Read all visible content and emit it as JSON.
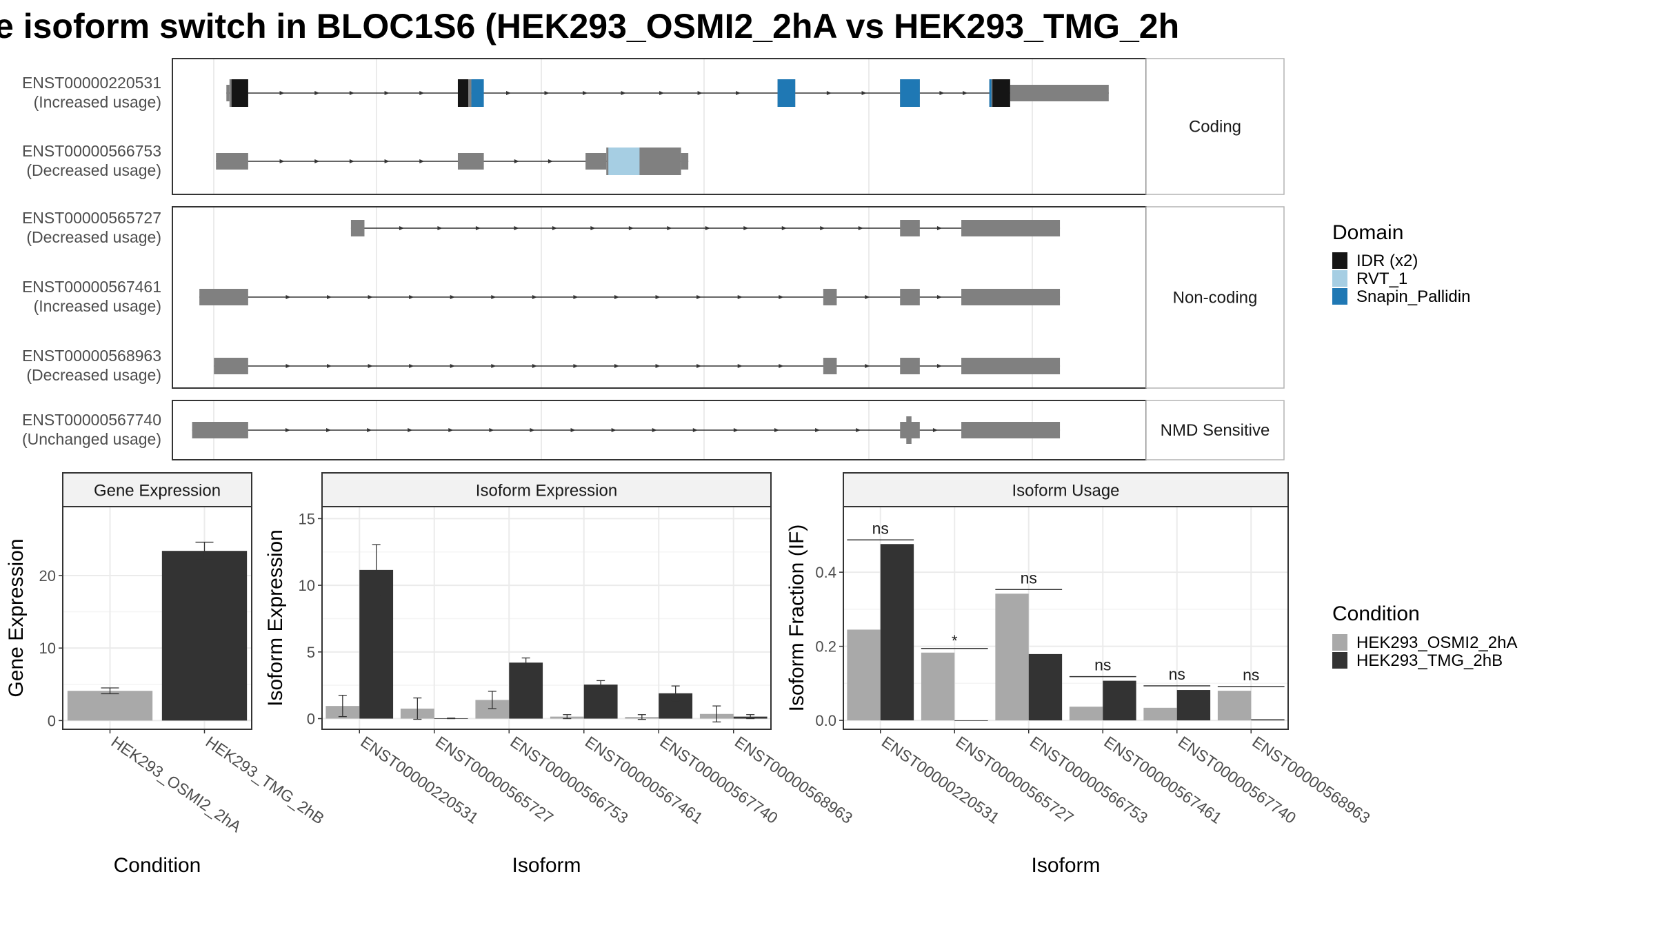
{
  "title": "e isoform switch in BLOC1S6 (HEK293_OSMI2_2hA vs HEK293_TMG_2h",
  "structure": {
    "groups": [
      {
        "label": "Coding",
        "transcripts": [
          {
            "id": "ENST00000220531",
            "usage": "(Increased usage)",
            "exons": [
              [
                -100,
                -70,
                "u"
              ],
              [
                -70,
                110,
                "c"
              ],
              [
                2130,
                2260,
                "c"
              ],
              [
                5210,
                5380,
                "c"
              ],
              [
                6390,
                6580,
                "c"
              ],
              [
                7250,
                7450,
                "c"
              ],
              [
                7450,
                8400,
                "u"
              ]
            ],
            "domains": [
              [
                "IDR (x2)",
                -50,
                110
              ],
              [
                "IDR (x2)",
                2130,
                2230
              ],
              [
                "Snapin_Pallidin",
                2260,
                2380
              ],
              [
                "Snapin_Pallidin",
                5210,
                5380
              ],
              [
                "Snapin_Pallidin",
                6390,
                6580
              ],
              [
                "Snapin_Pallidin",
                7250,
                7270
              ],
              [
                "IDR (x2)",
                7280,
                7450
              ]
            ]
          },
          {
            "id": "ENST00000566753",
            "usage": "(Decreased usage)",
            "exons": [
              [
                -200,
                110,
                "u"
              ],
              [
                2130,
                2380,
                "u"
              ],
              [
                3360,
                3560,
                "u"
              ],
              [
                3560,
                4280,
                "c"
              ],
              [
                4280,
                4350,
                "u"
              ]
            ],
            "domains": [
              [
                "RVT_1",
                3580,
                3880
              ]
            ]
          }
        ]
      },
      {
        "label": "Non-coding",
        "transcripts": [
          {
            "id": "ENST00000565727",
            "usage": "(Decreased usage)",
            "exons": [
              [
                1100,
                1230,
                "u"
              ],
              [
                6390,
                6580,
                "u"
              ],
              [
                6980,
                7930,
                "u"
              ]
            ],
            "domains": []
          },
          {
            "id": "ENST00000567461",
            "usage": "(Increased usage)",
            "exons": [
              [
                -360,
                110,
                "u"
              ],
              [
                5650,
                5780,
                "u"
              ],
              [
                6390,
                6580,
                "u"
              ],
              [
                6980,
                7930,
                "u"
              ]
            ],
            "domains": []
          },
          {
            "id": "ENST00000568963",
            "usage": "(Decreased usage)",
            "exons": [
              [
                -220,
                110,
                "u"
              ],
              [
                5650,
                5780,
                "u"
              ],
              [
                6390,
                6580,
                "u"
              ],
              [
                6980,
                7930,
                "u"
              ]
            ],
            "domains": []
          }
        ]
      },
      {
        "label": "NMD Sensitive",
        "transcripts": [
          {
            "id": "ENST00000567740",
            "usage": "(Unchanged usage)",
            "exons": [
              [
                -430,
                110,
                "u"
              ],
              [
                6390,
                6580,
                "u"
              ],
              [
                6450,
                6500,
                "c"
              ],
              [
                6980,
                7930,
                "u"
              ]
            ],
            "domains": []
          }
        ]
      }
    ],
    "domain_legend": {
      "title": "Domain",
      "items": [
        {
          "name": "IDR (x2)",
          "color": "#151515"
        },
        {
          "name": "RVT_1",
          "color": "#a6cee3"
        },
        {
          "name": "Snapin_Pallidin",
          "color": "#1f78b4"
        }
      ]
    },
    "exon_color": "#808080"
  },
  "condition_legend": {
    "title": "Condition",
    "items": [
      {
        "name": "HEK293_OSMI2_2hA",
        "color": "#a9a9a9"
      },
      {
        "name": "HEK293_TMG_2hB",
        "color": "#333333"
      }
    ]
  },
  "chart_data": [
    {
      "type": "bar",
      "title": "Gene Expression",
      "xlabel": "Condition",
      "ylabel": "Gene Expression",
      "categories": [
        "HEK293_OSMI2_2hA",
        "HEK293_TMG_2hB"
      ],
      "values": [
        4.1,
        23.4
      ],
      "errors": [
        0.4,
        1.2
      ],
      "ylim": [
        -1.2,
        29.5
      ],
      "yticks": [
        0,
        10,
        20
      ]
    },
    {
      "type": "bar",
      "title": "Isoform Expression",
      "xlabel": "Isoform",
      "ylabel": "Isoform Expression",
      "categories": [
        "ENST00000220531",
        "ENST00000565727",
        "ENST00000566753",
        "ENST00000567461",
        "ENST00000567740",
        "ENST00000568963"
      ],
      "series": [
        {
          "name": "HEK293_OSMI2_2hA",
          "values": [
            0.95,
            0.75,
            1.4,
            0.15,
            0.12,
            0.35
          ],
          "errors": [
            0.8,
            0.8,
            0.65,
            0.15,
            0.18,
            0.6
          ]
        },
        {
          "name": "HEK293_TMG_2hB",
          "values": [
            11.15,
            0.02,
            4.2,
            2.55,
            1.9,
            0.15
          ],
          "errors": [
            1.9,
            0.02,
            0.35,
            0.3,
            0.55,
            0.15
          ]
        }
      ],
      "ylim": [
        -0.8,
        15.9
      ],
      "yticks": [
        0,
        5,
        10,
        15
      ]
    },
    {
      "type": "bar",
      "title": "Isoform Usage",
      "xlabel": "Isoform",
      "ylabel": "Isoform Fraction (IF)",
      "categories": [
        "ENST00000220531",
        "ENST00000565727",
        "ENST00000566753",
        "ENST00000567461",
        "ENST00000567740",
        "ENST00000568963"
      ],
      "series": [
        {
          "name": "HEK293_OSMI2_2hA",
          "values": [
            0.245,
            0.183,
            0.342,
            0.037,
            0.034,
            0.08
          ]
        },
        {
          "name": "HEK293_TMG_2hB",
          "values": [
            0.476,
            0.0,
            0.179,
            0.107,
            0.082,
            0.003
          ]
        }
      ],
      "significance": [
        "ns",
        "*",
        "ns",
        "ns",
        "ns",
        "ns"
      ],
      "ylim": [
        -0.024,
        0.577
      ],
      "yticks": [
        0.0,
        0.2,
        0.4
      ],
      "ytick_labels": [
        "0.0",
        "0.2",
        "0.4"
      ]
    }
  ]
}
